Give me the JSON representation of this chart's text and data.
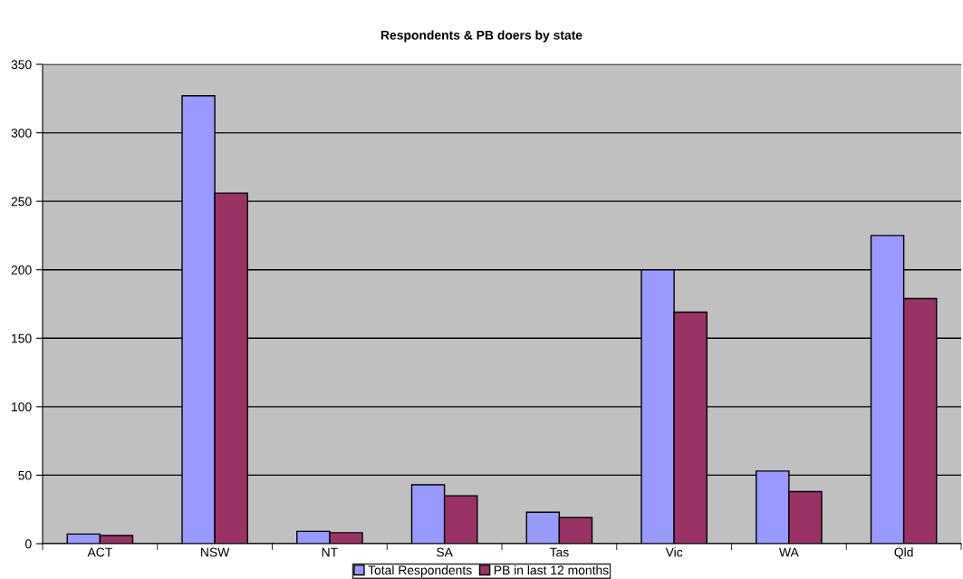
{
  "chart_data": {
    "type": "bar",
    "title": "Respondents & PB doers by state",
    "categories": [
      "ACT",
      "NSW",
      "NT",
      "SA",
      "Tas",
      "Vic",
      "WA",
      "Qld"
    ],
    "series": [
      {
        "name": "Total Respondents",
        "color": "#9999ff",
        "values": [
          7,
          327,
          9,
          43,
          23,
          200,
          53,
          225
        ]
      },
      {
        "name": "PB in last 12 months",
        "color": "#993366",
        "values": [
          6,
          256,
          8,
          35,
          19,
          169,
          38,
          179
        ]
      }
    ],
    "ylim": [
      0,
      350
    ],
    "yticks": [
      0,
      50,
      100,
      150,
      200,
      250,
      300,
      350
    ],
    "grid": "y",
    "legend": "bottom"
  }
}
